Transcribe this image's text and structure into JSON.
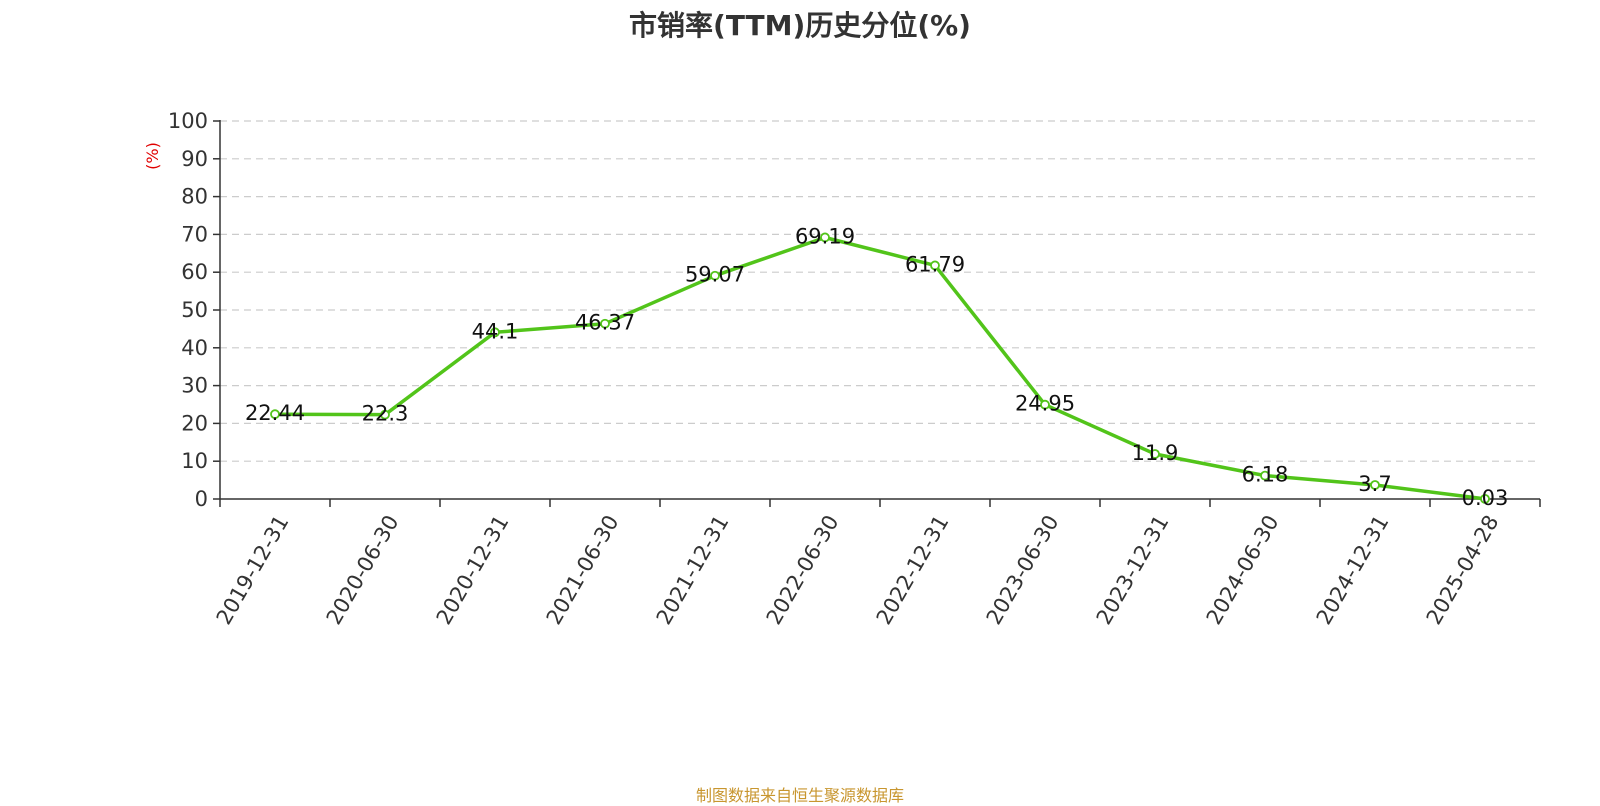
{
  "title": "市销率(TTM)历史分位(%)",
  "source": "制图数据来自恒生聚源数据库",
  "chart_data": {
    "type": "line",
    "title": "市销率(TTM)历史分位(%)",
    "ylabel": "(%)",
    "xlabel": "",
    "categories": [
      "2019-12-31",
      "2020-06-30",
      "2020-12-31",
      "2021-06-30",
      "2021-12-31",
      "2022-06-30",
      "2022-12-31",
      "2023-06-30",
      "2023-12-31",
      "2024-06-30",
      "2024-12-31",
      "2025-04-28"
    ],
    "values": [
      22.44,
      22.3,
      44.1,
      46.37,
      59.07,
      69.19,
      61.79,
      24.95,
      11.9,
      6.18,
      3.7,
      0.03
    ],
    "value_labels": [
      "22.44",
      "22.3",
      "44.1",
      "46.37",
      "59.07",
      "69.19",
      "61.79",
      "24.95",
      "11.9",
      "6.18",
      "3.7",
      "0.03"
    ],
    "ylim": [
      0,
      100
    ],
    "yticks": [
      0,
      10,
      20,
      30,
      40,
      50,
      60,
      70,
      80,
      90,
      100
    ],
    "ytick_labels": [
      "0",
      "10",
      "20",
      "30",
      "40",
      "50",
      "60",
      "70",
      "80",
      "90",
      "100"
    ],
    "grid": true,
    "legend": "none",
    "colors": {
      "line": "#52c41a",
      "grid": "#cccccc",
      "axis": "#333333",
      "unit": "#e00000",
      "source": "#c8962f"
    }
  }
}
